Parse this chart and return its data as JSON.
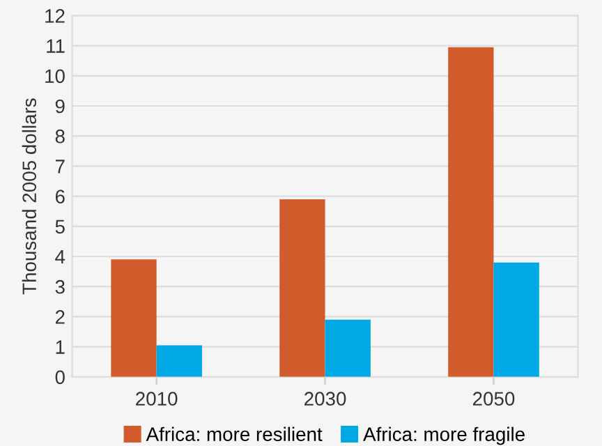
{
  "chart_data": {
    "type": "bar",
    "ylabel": "Thousand 2005 dollars",
    "categories": [
      "2010",
      "2030",
      "2050"
    ],
    "series": [
      {
        "name": "Africa: more resilient",
        "color": "#d25b2c",
        "values": [
          3.9,
          5.9,
          10.95
        ]
      },
      {
        "name": "Africa: more fragile",
        "color": "#00a9e6",
        "values": [
          1.05,
          1.9,
          3.8
        ]
      }
    ],
    "ylim": [
      0,
      12
    ],
    "yticks": [
      0,
      1,
      2,
      3,
      4,
      5,
      6,
      7,
      8,
      9,
      10,
      11,
      12
    ],
    "grid": "y",
    "legend": "bottom"
  }
}
